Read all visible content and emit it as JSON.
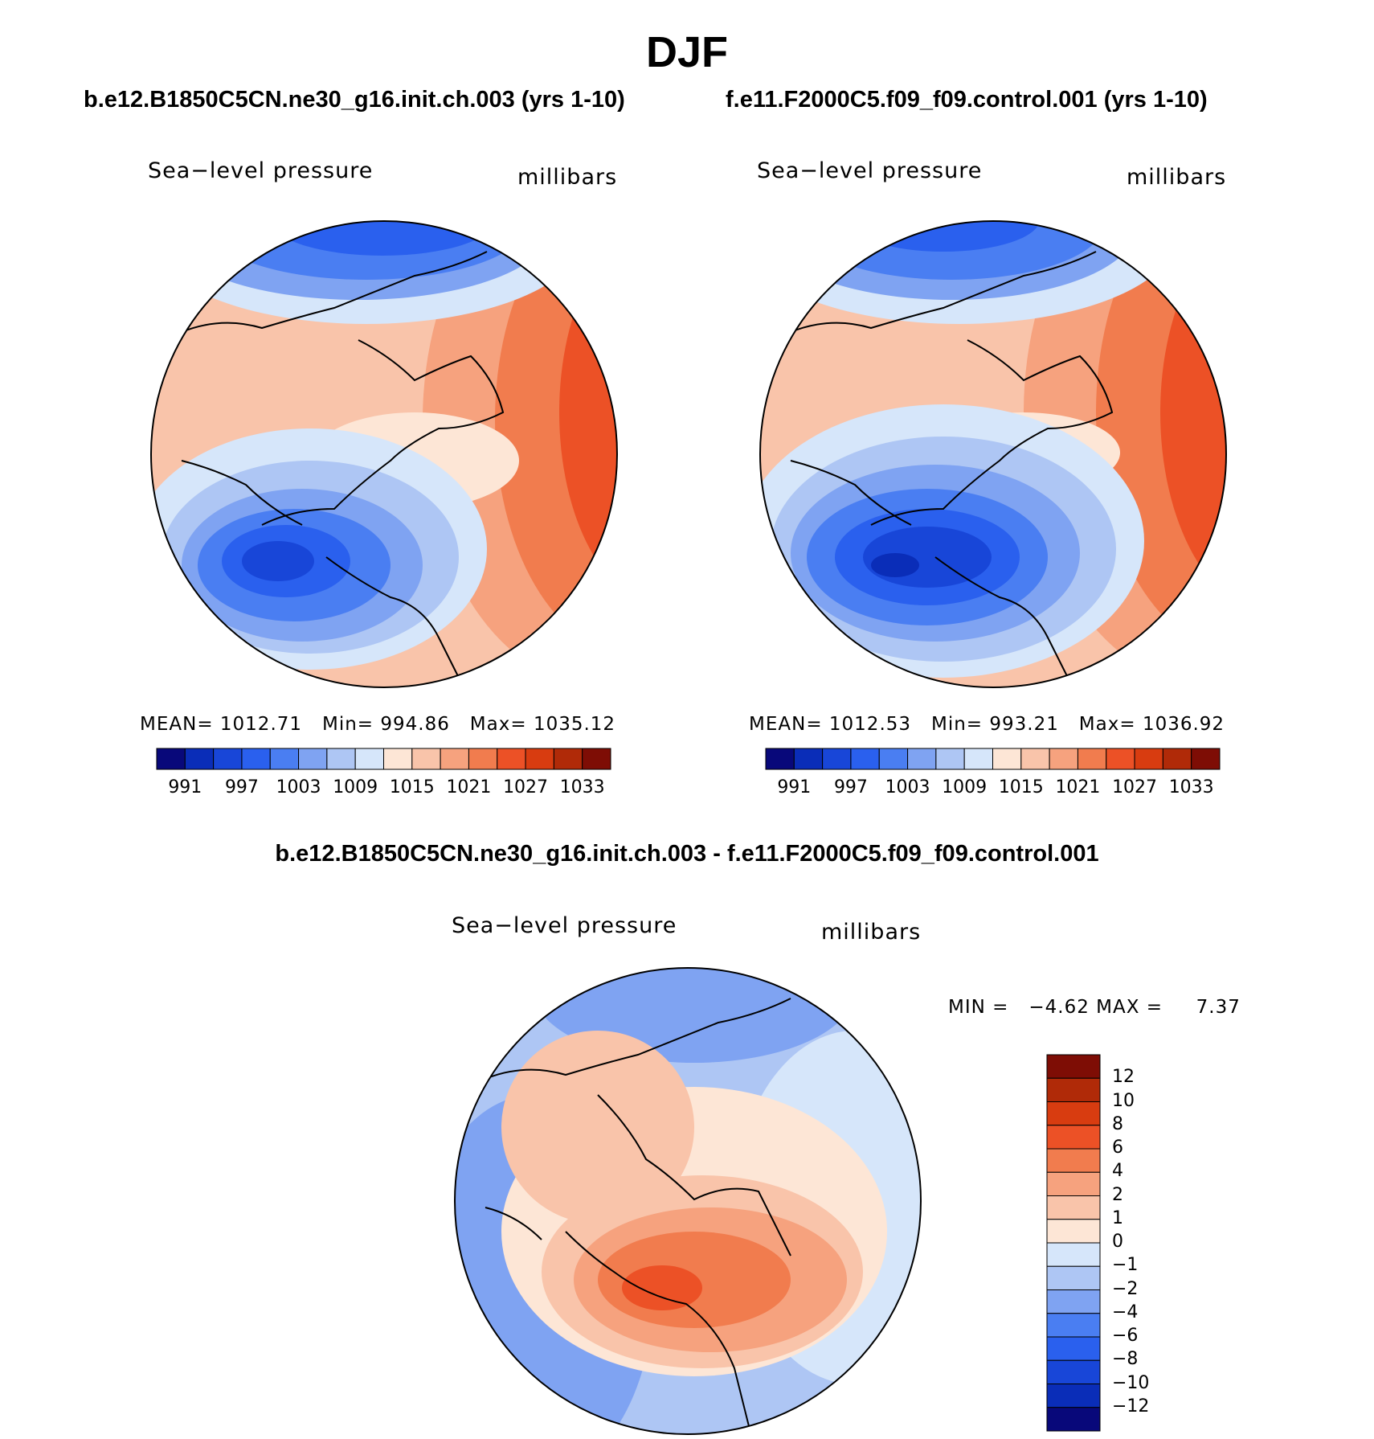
{
  "page": {
    "title": "DJF"
  },
  "panel_left": {
    "case_title": "b.e12.B1850C5CN.ne30_g16.init.ch.003 (yrs 1-10)",
    "variable": "Sea−level pressure",
    "units": "millibars",
    "mean_label": "MEAN=",
    "mean": "1012.71",
    "min_label": "Min=",
    "min": "994.86",
    "max_label": "Max=",
    "max": "1035.12"
  },
  "panel_right": {
    "case_title": "f.e11.F2000C5.f09_f09.control.001 (yrs 1-10)",
    "variable": "Sea−level pressure",
    "units": "millibars",
    "mean_label": "MEAN=",
    "mean": "1012.53",
    "min_label": "Min=",
    "min": "993.21",
    "max_label": "Max=",
    "max": "1036.92"
  },
  "panel_diff": {
    "case_title": "b.e12.B1850C5CN.ne30_g16.init.ch.003 - f.e11.F2000C5.f09_f09.control.001",
    "variable": "Sea−level pressure",
    "units": "millibars",
    "min_label": "MIN =",
    "min": "−4.62",
    "max_label": "MAX =",
    "max": "7.37"
  },
  "colorbar_abs": {
    "tick_labels": [
      "991",
      "997",
      "1003",
      "1009",
      "1015",
      "1021",
      "1027",
      "1033"
    ],
    "colors": [
      "#08087a",
      "#0a2db8",
      "#1846d8",
      "#2a60ee",
      "#4a7ef2",
      "#7fa3f2",
      "#aec6f4",
      "#d6e6fa",
      "#fde6d6",
      "#f9c4aa",
      "#f6a27e",
      "#f17c4e",
      "#ec5126",
      "#d83c10",
      "#b02a08",
      "#7e0d05"
    ]
  },
  "colorbar_diff": {
    "tick_labels": [
      "12",
      "10",
      "8",
      "6",
      "4",
      "2",
      "1",
      "0",
      "−1",
      "−2",
      "−4",
      "−6",
      "−8",
      "−10",
      "−12"
    ],
    "colors": [
      "#7e0d05",
      "#b02a08",
      "#d83c10",
      "#ec5126",
      "#f17c4e",
      "#f6a27e",
      "#f9c4aa",
      "#fde6d6",
      "#d6e6fa",
      "#aec6f4",
      "#7fa3f2",
      "#4a7ef2",
      "#2a60ee",
      "#1846d8",
      "#0a2db8",
      "#08087a"
    ]
  },
  "map_fill": {
    "abs_ocean_base": "#f9c4aa",
    "diff_base": "#aec6f4"
  }
}
